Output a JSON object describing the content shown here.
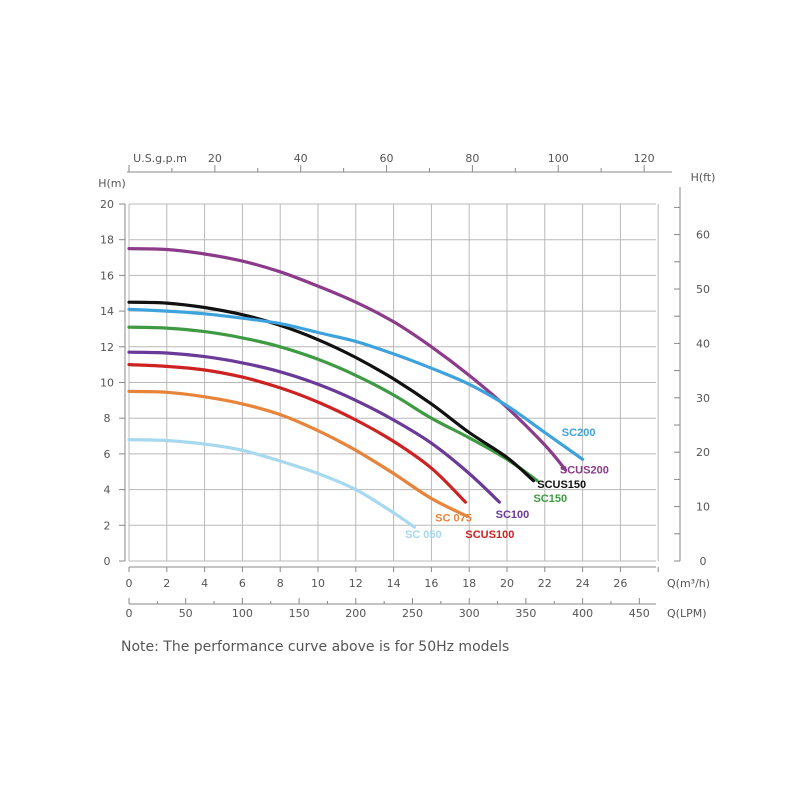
{
  "chart_data": {
    "type": "line",
    "title": "",
    "xlabel": "Q(m³/h)",
    "ylabel": "H(m)",
    "y2label": "H(ft)",
    "x_top_label": "U.S.g.p.m",
    "x_bottom2_label": "Q(LPM)",
    "xlim": [
      0,
      28
    ],
    "ylim": [
      0,
      20
    ],
    "grid": true,
    "x_ticks": [
      0,
      2,
      4,
      6,
      8,
      10,
      12,
      14,
      16,
      18,
      20,
      22,
      24,
      26
    ],
    "y_ticks": [
      0,
      2,
      4,
      6,
      8,
      10,
      12,
      14,
      16,
      18,
      20
    ],
    "y2_ticks": [
      0,
      10,
      20,
      30,
      40,
      50,
      60
    ],
    "top_ticks": [
      20,
      40,
      60,
      80,
      100,
      120
    ],
    "lpm_ticks": [
      0,
      50,
      100,
      150,
      200,
      250,
      300,
      350,
      400,
      450
    ],
    "series": [
      {
        "name": "SC 050",
        "color": "#a6d8ee",
        "label_at": [
          14.6,
          1.3
        ],
        "points": [
          [
            0,
            6.8
          ],
          [
            2,
            6.75
          ],
          [
            4,
            6.55
          ],
          [
            6,
            6.2
          ],
          [
            8,
            5.6
          ],
          [
            10,
            4.9
          ],
          [
            12,
            4.0
          ],
          [
            14,
            2.7
          ],
          [
            15.1,
            1.9
          ]
        ]
      },
      {
        "name": "SC 075",
        "color": "#e8843a",
        "label_at": [
          16.2,
          2.2
        ],
        "points": [
          [
            0,
            9.5
          ],
          [
            2,
            9.45
          ],
          [
            4,
            9.2
          ],
          [
            6,
            8.8
          ],
          [
            8,
            8.2
          ],
          [
            10,
            7.3
          ],
          [
            12,
            6.2
          ],
          [
            14,
            4.9
          ],
          [
            16,
            3.5
          ],
          [
            17.9,
            2.5
          ]
        ]
      },
      {
        "name": "SCUS100",
        "color": "#cc2222",
        "label_at": [
          17.8,
          1.3
        ],
        "points": [
          [
            0,
            11.0
          ],
          [
            2,
            10.9
          ],
          [
            4,
            10.7
          ],
          [
            6,
            10.3
          ],
          [
            8,
            9.7
          ],
          [
            10,
            8.9
          ],
          [
            12,
            7.9
          ],
          [
            14,
            6.7
          ],
          [
            16,
            5.2
          ],
          [
            17.8,
            3.3
          ]
        ]
      },
      {
        "name": "SC100",
        "color": "#6a3a98",
        "label_at": [
          19.4,
          2.4
        ],
        "points": [
          [
            0,
            11.7
          ],
          [
            2,
            11.65
          ],
          [
            4,
            11.45
          ],
          [
            6,
            11.1
          ],
          [
            8,
            10.6
          ],
          [
            10,
            9.9
          ],
          [
            12,
            9.0
          ],
          [
            14,
            7.9
          ],
          [
            16,
            6.6
          ],
          [
            18,
            4.9
          ],
          [
            19.6,
            3.3
          ]
        ]
      },
      {
        "name": "SC150",
        "color": "#3f9a44",
        "label_at": [
          21.4,
          3.3
        ],
        "points": [
          [
            0,
            13.1
          ],
          [
            2,
            13.05
          ],
          [
            4,
            12.85
          ],
          [
            6,
            12.5
          ],
          [
            8,
            12.0
          ],
          [
            10,
            11.3
          ],
          [
            12,
            10.4
          ],
          [
            14,
            9.3
          ],
          [
            16,
            8.0
          ],
          [
            18,
            6.9
          ],
          [
            20,
            5.7
          ],
          [
            21.6,
            4.5
          ]
        ]
      },
      {
        "name": "SCUS150",
        "color": "#111111",
        "label_at": [
          21.6,
          4.1
        ],
        "points": [
          [
            0,
            14.5
          ],
          [
            2,
            14.45
          ],
          [
            4,
            14.2
          ],
          [
            6,
            13.8
          ],
          [
            8,
            13.2
          ],
          [
            10,
            12.4
          ],
          [
            12,
            11.4
          ],
          [
            14,
            10.2
          ],
          [
            16,
            8.8
          ],
          [
            18,
            7.2
          ],
          [
            20,
            5.8
          ],
          [
            21.4,
            4.5
          ]
        ]
      },
      {
        "name": "SCUS200",
        "color": "#8c3a8a",
        "label_at": [
          22.8,
          4.9
        ],
        "points": [
          [
            0,
            17.5
          ],
          [
            2,
            17.45
          ],
          [
            4,
            17.2
          ],
          [
            6,
            16.8
          ],
          [
            8,
            16.2
          ],
          [
            10,
            15.4
          ],
          [
            12,
            14.5
          ],
          [
            14,
            13.4
          ],
          [
            16,
            12.0
          ],
          [
            18,
            10.4
          ],
          [
            20,
            8.6
          ],
          [
            22,
            6.5
          ],
          [
            23.1,
            5.1
          ]
        ]
      },
      {
        "name": "SC200",
        "color": "#3ea3dc",
        "label_at": [
          22.9,
          7.0
        ],
        "points": [
          [
            0,
            14.1
          ],
          [
            2,
            14.0
          ],
          [
            4,
            13.85
          ],
          [
            6,
            13.6
          ],
          [
            8,
            13.3
          ],
          [
            10,
            12.8
          ],
          [
            12,
            12.3
          ],
          [
            14,
            11.6
          ],
          [
            16,
            10.8
          ],
          [
            18,
            9.9
          ],
          [
            20,
            8.7
          ],
          [
            22,
            7.2
          ],
          [
            24,
            5.7
          ]
        ]
      }
    ]
  },
  "note": "Note: The performance curve above is for 50Hz models"
}
